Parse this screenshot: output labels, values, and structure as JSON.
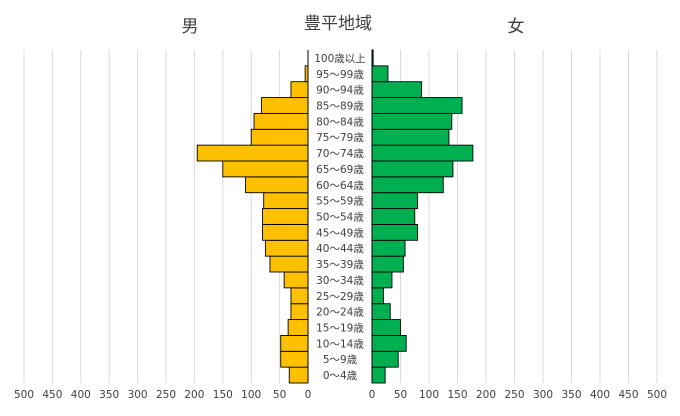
{
  "chart_data": {
    "type": "bar",
    "orientation": "horizontal",
    "layout": "population-pyramid",
    "title": "豊平地域",
    "left_label": "男",
    "right_label": "女",
    "categories": [
      "0～4歳",
      "5～9歳",
      "10～14歳",
      "15～19歳",
      "20～24歳",
      "25～29歳",
      "30～34歳",
      "35～39歳",
      "40～44歳",
      "45～49歳",
      "50～54歳",
      "55～59歳",
      "60～64歳",
      "65～69歳",
      "70～74歳",
      "75～79歳",
      "80～84歳",
      "85～89歳",
      "90～94歳",
      "95～99歳",
      "100歳以上"
    ],
    "series": [
      {
        "name": "男",
        "color": "#FFC000",
        "values": [
          33,
          48,
          48,
          35,
          30,
          30,
          42,
          67,
          75,
          80,
          80,
          78,
          110,
          150,
          195,
          100,
          95,
          82,
          30,
          5,
          0
        ]
      },
      {
        "name": "女",
        "color": "#00B050",
        "values": [
          23,
          46,
          60,
          50,
          32,
          20,
          35,
          55,
          58,
          80,
          75,
          80,
          125,
          142,
          177,
          135,
          140,
          158,
          87,
          28,
          2
        ]
      }
    ],
    "xlim": [
      0,
      500
    ],
    "xticks": [
      "500",
      "450",
      "400",
      "350",
      "300",
      "250",
      "200",
      "150",
      "100",
      "50",
      "0"
    ],
    "xticks_right": [
      "0",
      "50",
      "100",
      "150",
      "200",
      "250",
      "300",
      "350",
      "400",
      "450",
      "500"
    ],
    "grid": true
  }
}
